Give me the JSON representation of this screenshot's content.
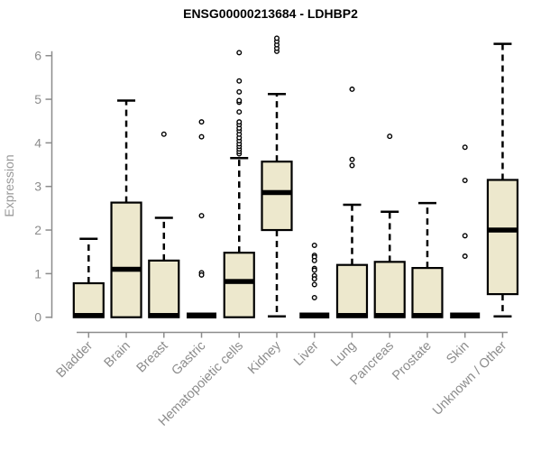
{
  "page": {
    "background": "#FFFFFF"
  },
  "chart_data": {
    "type": "boxplot",
    "title": "ENSG00000213684 - LDHBP2",
    "ylabel": "Expression",
    "xlabel": "",
    "ylim": [
      0,
      6.5
    ],
    "yticks": [
      0,
      1,
      2,
      3,
      4,
      5,
      6
    ],
    "grid": false,
    "legend": "none",
    "categories": [
      "Bladder",
      "Brain",
      "Breast",
      "Gastric",
      "Hematopoietic cells",
      "Kidney",
      "Liver",
      "Lung",
      "Pancreas",
      "Prostate",
      "Skin",
      "Unknown / Other"
    ],
    "series": [
      {
        "name": "Bladder",
        "whisker_low": 0,
        "q1": 0,
        "median": 0.04,
        "q3": 0.78,
        "whisker_high": 1.8,
        "outliers": []
      },
      {
        "name": "Brain",
        "whisker_low": 0,
        "q1": 0,
        "median": 1.1,
        "q3": 2.63,
        "whisker_high": 4.97,
        "outliers": []
      },
      {
        "name": "Breast",
        "whisker_low": 0,
        "q1": 0,
        "median": 0.04,
        "q3": 1.3,
        "whisker_high": 2.28,
        "outliers": [
          4.2
        ]
      },
      {
        "name": "Gastric",
        "whisker_low": 0.04,
        "q1": 0.04,
        "median": 0.04,
        "q3": 0.04,
        "whisker_high": 0.04,
        "outliers": [
          4.48,
          4.14,
          2.33,
          1.02,
          0.97
        ]
      },
      {
        "name": "Hematopoietic cells",
        "whisker_low": 0,
        "q1": 0,
        "median": 0.82,
        "q3": 1.48,
        "whisker_high": 3.65,
        "outliers": [
          3.75,
          3.8,
          3.86,
          3.92,
          3.98,
          4.05,
          4.12,
          4.2,
          4.28,
          4.34,
          4.42,
          4.48,
          4.71,
          4.93,
          4.97,
          5.17,
          5.42,
          6.07
        ]
      },
      {
        "name": "Kidney",
        "whisker_low": 0.02,
        "q1": 2.0,
        "median": 2.86,
        "q3": 3.57,
        "whisker_high": 5.12,
        "outliers": [
          6.1,
          6.17,
          6.25,
          6.33,
          6.4
        ]
      },
      {
        "name": "Liver",
        "whisker_low": 0.04,
        "q1": 0.04,
        "median": 0.04,
        "q3": 0.04,
        "whisker_high": 0.04,
        "outliers": [
          1.65,
          1.42,
          1.38,
          1.3,
          1.12,
          1.08,
          0.95,
          0.88,
          0.75,
          0.45
        ]
      },
      {
        "name": "Lung",
        "whisker_low": 0,
        "q1": 0,
        "median": 0.04,
        "q3": 1.2,
        "whisker_high": 2.58,
        "outliers": [
          5.23,
          3.62,
          3.48
        ]
      },
      {
        "name": "Pancreas",
        "whisker_low": 0,
        "q1": 0,
        "median": 0.04,
        "q3": 1.27,
        "whisker_high": 2.42,
        "outliers": [
          4.15
        ]
      },
      {
        "name": "Prostate",
        "whisker_low": 0,
        "q1": 0,
        "median": 0.04,
        "q3": 1.13,
        "whisker_high": 2.62,
        "outliers": []
      },
      {
        "name": "Skin",
        "whisker_low": 0.04,
        "q1": 0.04,
        "median": 0.04,
        "q3": 0.04,
        "whisker_high": 0.04,
        "outliers": [
          3.9,
          3.14,
          1.87,
          1.4
        ]
      },
      {
        "name": "Unknown / Other",
        "whisker_low": 0.02,
        "q1": 0.53,
        "median": 2.0,
        "q3": 3.15,
        "whisker_high": 6.27,
        "outliers": []
      }
    ],
    "style": {
      "box_fill": "#EDE8CD",
      "box_border": "#000000",
      "median_color": "#000000",
      "whisker_color": "#000000",
      "outlier_color": "#000000",
      "axis_color": "#8C8C8C",
      "tick_label_color": "#8C8C8C",
      "axis_label_color": "#999999",
      "title_color": "#000000"
    }
  }
}
